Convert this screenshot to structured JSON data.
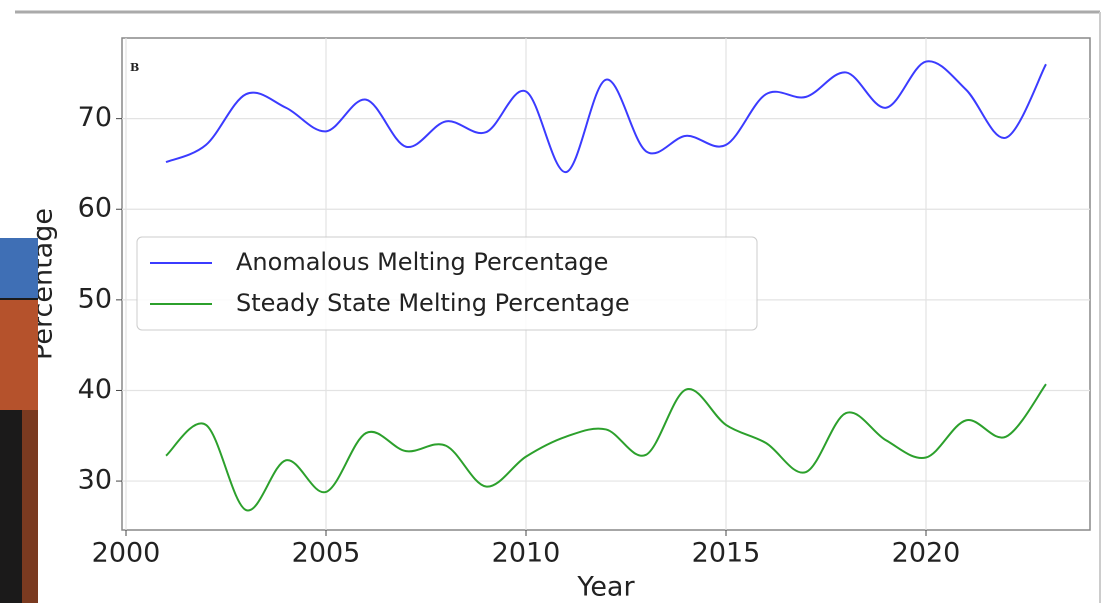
{
  "chart_data": {
    "type": "line",
    "panel_label": "B",
    "x_label": "Year",
    "y_label": "Percentage",
    "x": [
      2001,
      2002,
      2003,
      2004,
      2005,
      2006,
      2007,
      2008,
      2009,
      2010,
      2011,
      2012,
      2013,
      2014,
      2015,
      2016,
      2017,
      2018,
      2019,
      2020,
      2021,
      2022,
      2023
    ],
    "series": [
      {
        "name": "Anomalous Melting Percentage",
        "color": "#3b3bff",
        "values": [
          65.2,
          67.1,
          72.7,
          71.2,
          68.6,
          72.1,
          66.9,
          69.7,
          68.5,
          73.0,
          64.1,
          74.3,
          66.4,
          68.1,
          67.1,
          72.7,
          72.4,
          75.1,
          71.2,
          76.3,
          73.2,
          67.9,
          76.0
        ]
      },
      {
        "name": "Steady State Melting Percentage",
        "color": "#2ca02c",
        "values": [
          32.8,
          36.2,
          26.8,
          32.3,
          28.8,
          35.3,
          33.3,
          33.9,
          29.4,
          32.7,
          34.9,
          35.7,
          32.9,
          40.1,
          36.2,
          34.2,
          31.0,
          37.5,
          34.5,
          32.6,
          36.7,
          34.9,
          40.7
        ]
      }
    ],
    "xlim": [
      1999.9,
      2024.1
    ],
    "ylim": [
      24.6,
      78.9
    ],
    "xticks": [
      2000,
      2005,
      2010,
      2015,
      2020
    ],
    "yticks": [
      30,
      40,
      50,
      60,
      70
    ],
    "grid": true,
    "legend": "center left"
  }
}
